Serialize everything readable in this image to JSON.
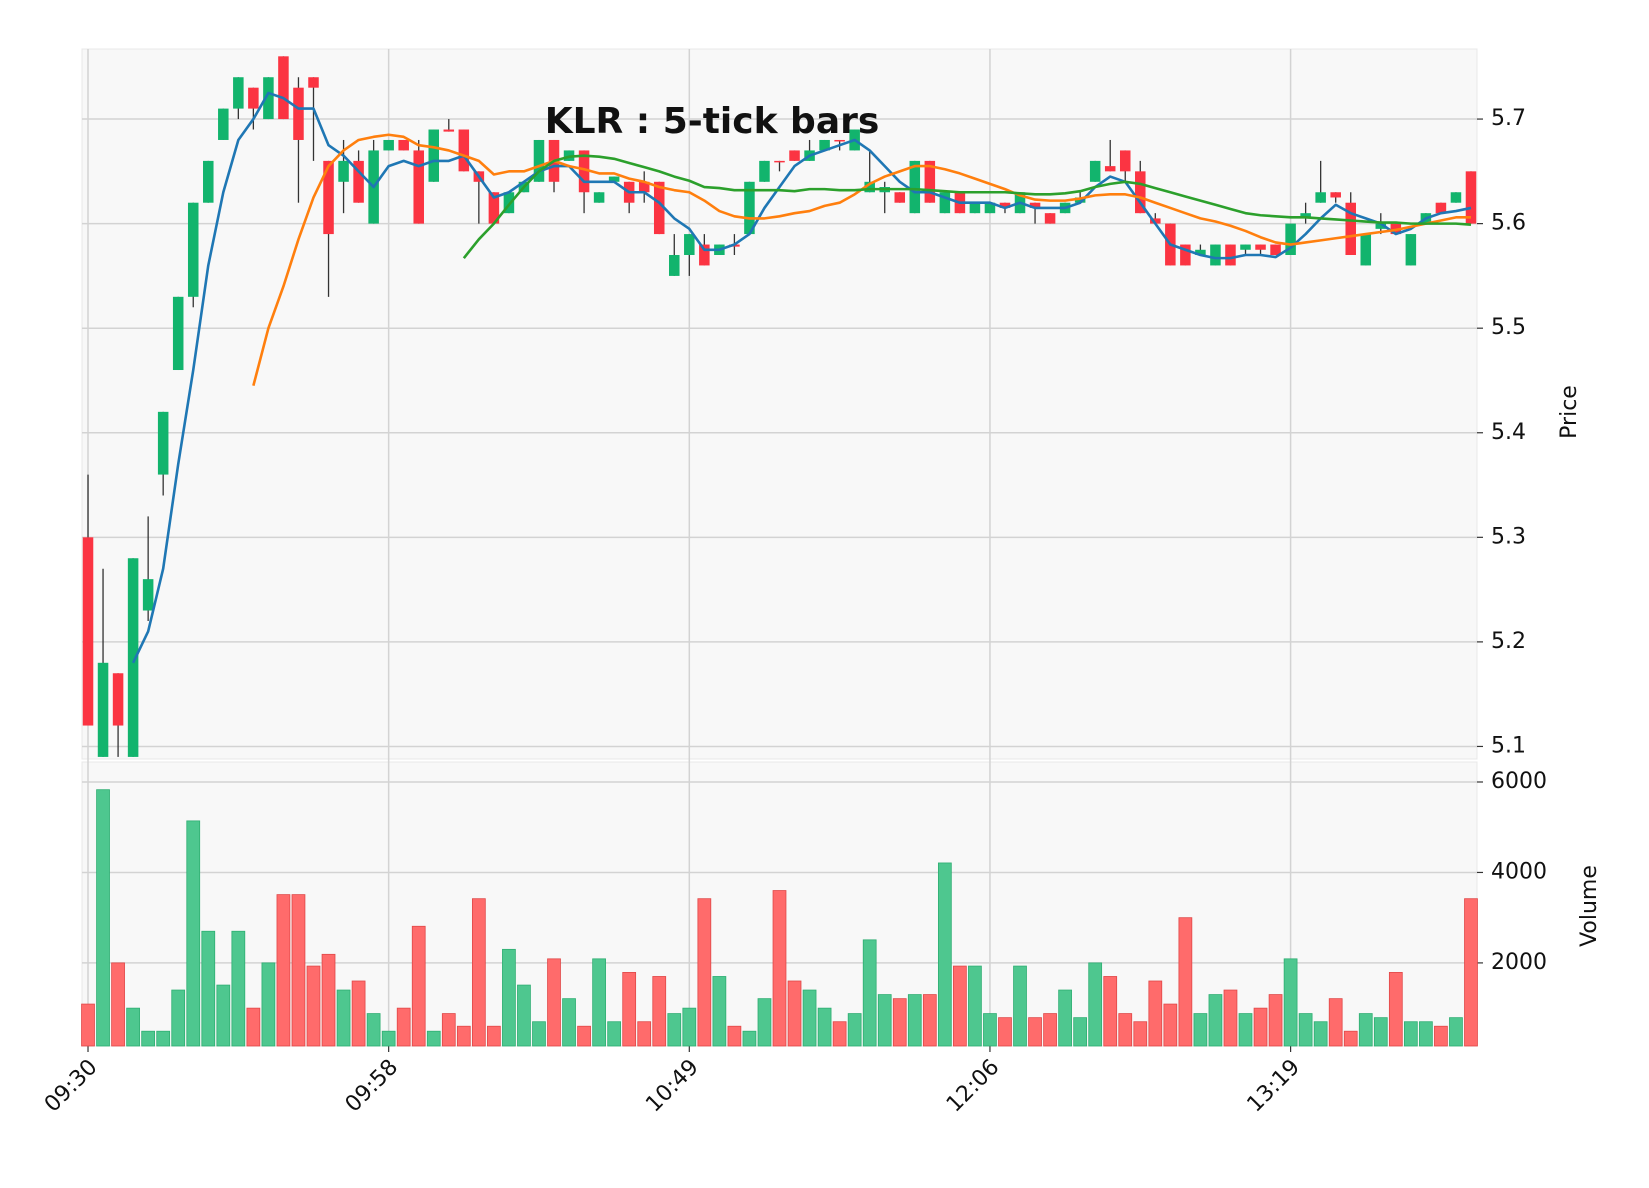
{
  "chart_data": {
    "type": "candlestick",
    "title": "KLR : 5-tick bars",
    "ylabel": "Price",
    "categories": [
      "09:30",
      null,
      null,
      null,
      null,
      null,
      null,
      null,
      null,
      null,
      null,
      null,
      null,
      null,
      null,
      null,
      null,
      null,
      null,
      null,
      "09:58",
      null,
      null,
      null,
      null,
      null,
      null,
      null,
      null,
      null,
      null,
      null,
      null,
      null,
      null,
      null,
      null,
      null,
      null,
      null,
      "10:49",
      null,
      null,
      null,
      null,
      null,
      null,
      null,
      null,
      null,
      null,
      null,
      null,
      null,
      null,
      null,
      null,
      null,
      null,
      null,
      "12:06",
      null,
      null,
      null,
      null,
      null,
      null,
      null,
      null,
      null,
      null,
      null,
      null,
      null,
      null,
      null,
      null,
      null,
      null,
      null,
      "13:19",
      null,
      null,
      null,
      null,
      null,
      null,
      null,
      null,
      null,
      null,
      null,
      null
    ],
    "open": [
      5.3,
      5.09,
      5.17,
      5.09,
      5.23,
      5.36,
      5.46,
      5.53,
      5.62,
      5.68,
      5.71,
      5.73,
      5.7,
      5.76,
      5.73,
      5.74,
      5.66,
      5.64,
      5.66,
      5.6,
      5.67,
      5.68,
      5.67,
      5.64,
      5.69,
      5.69,
      5.65,
      5.63,
      5.61,
      5.63,
      5.64,
      5.68,
      5.66,
      5.67,
      5.62,
      5.64,
      5.64,
      5.64,
      5.64,
      5.55,
      5.57,
      5.58,
      5.57,
      5.58,
      5.59,
      5.64,
      5.66,
      5.67,
      5.66,
      5.67,
      5.68,
      5.67,
      5.63,
      5.63,
      5.63,
      5.61,
      5.66,
      5.61,
      5.63,
      5.61,
      5.61,
      5.62,
      5.61,
      5.62,
      5.61,
      5.61,
      5.62,
      5.64,
      5.655,
      5.67,
      5.65,
      5.605,
      5.6,
      5.58,
      5.57,
      5.56,
      5.58,
      5.575,
      5.58,
      5.58,
      5.57,
      5.605,
      5.62,
      5.63,
      5.62,
      5.56,
      5.595,
      5.6,
      5.56,
      5.6,
      5.62,
      5.62,
      5.65
    ],
    "high": [
      5.36,
      5.27,
      5.17,
      5.28,
      5.32,
      5.42,
      5.53,
      5.62,
      5.66,
      5.71,
      5.74,
      5.73,
      5.74,
      5.76,
      5.74,
      5.74,
      5.66,
      5.68,
      5.67,
      5.68,
      5.68,
      5.68,
      5.68,
      5.69,
      5.7,
      5.69,
      5.65,
      5.63,
      5.63,
      5.64,
      5.68,
      5.68,
      5.67,
      5.67,
      5.63,
      5.645,
      5.64,
      5.65,
      5.64,
      5.59,
      5.59,
      5.59,
      5.58,
      5.59,
      5.64,
      5.66,
      5.66,
      5.67,
      5.68,
      5.68,
      5.68,
      5.69,
      5.67,
      5.64,
      5.63,
      5.66,
      5.66,
      5.63,
      5.63,
      5.62,
      5.62,
      5.62,
      5.63,
      5.62,
      5.61,
      5.62,
      5.63,
      5.66,
      5.68,
      5.67,
      5.66,
      5.61,
      5.6,
      5.58,
      5.58,
      5.58,
      5.58,
      5.58,
      5.58,
      5.58,
      5.6,
      5.62,
      5.66,
      5.63,
      5.63,
      5.59,
      5.61,
      5.6,
      5.59,
      5.61,
      5.62,
      5.63,
      5.65
    ],
    "low": [
      5.12,
      5.09,
      5.09,
      5.09,
      5.22,
      5.34,
      5.46,
      5.52,
      5.62,
      5.68,
      5.7,
      5.69,
      5.7,
      5.7,
      5.62,
      5.66,
      5.53,
      5.61,
      5.62,
      5.6,
      5.67,
      5.67,
      5.6,
      5.64,
      5.688,
      5.65,
      5.6,
      5.6,
      5.61,
      5.63,
      5.64,
      5.63,
      5.66,
      5.61,
      5.62,
      5.64,
      5.61,
      5.62,
      5.59,
      5.55,
      5.55,
      5.56,
      5.57,
      5.57,
      5.59,
      5.64,
      5.65,
      5.66,
      5.66,
      5.67,
      5.67,
      5.67,
      5.63,
      5.61,
      5.62,
      5.61,
      5.62,
      5.61,
      5.61,
      5.61,
      5.61,
      5.61,
      5.61,
      5.6,
      5.6,
      5.61,
      5.62,
      5.64,
      5.65,
      5.64,
      5.61,
      5.6,
      5.56,
      5.56,
      5.57,
      5.56,
      5.56,
      5.57,
      5.57,
      5.57,
      5.57,
      5.6,
      5.62,
      5.62,
      5.57,
      5.56,
      5.59,
      5.59,
      5.56,
      5.6,
      5.61,
      5.62,
      5.6
    ],
    "close": [
      5.12,
      5.18,
      5.12,
      5.28,
      5.26,
      5.42,
      5.53,
      5.62,
      5.66,
      5.71,
      5.74,
      5.71,
      5.74,
      5.7,
      5.68,
      5.73,
      5.59,
      5.66,
      5.62,
      5.67,
      5.68,
      5.67,
      5.6,
      5.69,
      5.688,
      5.65,
      5.64,
      5.6,
      5.63,
      5.64,
      5.68,
      5.64,
      5.67,
      5.63,
      5.63,
      5.645,
      5.62,
      5.63,
      5.59,
      5.57,
      5.59,
      5.56,
      5.58,
      5.578,
      5.64,
      5.66,
      5.659,
      5.66,
      5.67,
      5.68,
      5.679,
      5.69,
      5.64,
      5.635,
      5.62,
      5.66,
      5.62,
      5.63,
      5.61,
      5.62,
      5.62,
      5.615,
      5.63,
      5.615,
      5.6,
      5.62,
      5.625,
      5.66,
      5.65,
      5.65,
      5.61,
      5.6,
      5.56,
      5.56,
      5.575,
      5.58,
      5.56,
      5.58,
      5.575,
      5.57,
      5.6,
      5.61,
      5.63,
      5.625,
      5.57,
      5.59,
      5.6,
      5.59,
      5.59,
      5.61,
      5.61,
      5.63,
      5.6
    ],
    "up_color": "#12b46d",
    "down_color": "#fb3442",
    "xlim": [
      -0.4,
      92.4
    ],
    "ylim": [
      5.088,
      5.767
    ],
    "yticks": [
      5.1,
      5.2,
      5.3,
      5.4,
      5.5,
      5.6,
      5.7
    ],
    "grid": true,
    "mav": [
      {
        "color": "#1f77b4",
        "values": [
          null,
          null,
          null,
          5.18,
          5.21,
          5.27,
          5.37,
          5.46,
          5.56,
          5.63,
          5.68,
          5.7,
          5.725,
          5.72,
          5.71,
          5.71,
          5.675,
          5.665,
          5.65,
          5.635,
          5.655,
          5.66,
          5.655,
          5.66,
          5.66,
          5.665,
          5.645,
          5.625,
          5.63,
          5.64,
          5.65,
          5.655,
          5.655,
          5.64,
          5.64,
          5.64,
          5.63,
          5.63,
          5.62,
          5.605,
          5.595,
          5.575,
          5.575,
          5.58,
          5.59,
          5.615,
          5.635,
          5.655,
          5.665,
          5.67,
          5.675,
          5.68,
          5.67,
          5.655,
          5.64,
          5.63,
          5.63,
          5.625,
          5.62,
          5.62,
          5.62,
          5.615,
          5.62,
          5.615,
          5.615,
          5.615,
          5.62,
          5.635,
          5.645,
          5.64,
          5.62,
          5.6,
          5.58,
          5.575,
          5.57,
          5.567,
          5.567,
          5.57,
          5.57,
          5.568,
          5.577,
          5.59,
          5.605,
          5.618,
          5.61,
          5.605,
          5.6,
          5.59,
          5.595,
          5.605,
          5.61,
          5.612,
          5.615
        ]
      },
      {
        "color": "#ff7f0e",
        "values": [
          null,
          null,
          null,
          null,
          null,
          null,
          null,
          null,
          null,
          null,
          null,
          5.445,
          5.5,
          5.54,
          5.585,
          5.625,
          5.655,
          5.67,
          5.68,
          5.683,
          5.685,
          5.683,
          5.675,
          5.673,
          5.67,
          5.665,
          5.66,
          5.647,
          5.65,
          5.65,
          5.655,
          5.66,
          5.655,
          5.652,
          5.648,
          5.648,
          5.643,
          5.64,
          5.635,
          5.632,
          5.63,
          5.622,
          5.612,
          5.607,
          5.605,
          5.605,
          5.607,
          5.61,
          5.612,
          5.617,
          5.62,
          5.628,
          5.638,
          5.645,
          5.65,
          5.655,
          5.655,
          5.652,
          5.648,
          5.643,
          5.638,
          5.633,
          5.627,
          5.623,
          5.622,
          5.622,
          5.624,
          5.627,
          5.628,
          5.628,
          5.625,
          5.62,
          5.615,
          5.61,
          5.605,
          5.602,
          5.598,
          5.593,
          5.587,
          5.582,
          5.58,
          5.582,
          5.584,
          5.586,
          5.588,
          5.59,
          5.592,
          5.594,
          5.597,
          5.6,
          5.603,
          5.606,
          5.606
        ]
      },
      {
        "color": "#2ca02c",
        "values": [
          null,
          null,
          null,
          null,
          null,
          null,
          null,
          null,
          null,
          null,
          null,
          null,
          null,
          null,
          null,
          null,
          null,
          null,
          null,
          null,
          null,
          null,
          null,
          null,
          null,
          5.567,
          5.585,
          5.6,
          5.618,
          5.635,
          5.65,
          5.66,
          5.664,
          5.665,
          5.664,
          5.662,
          5.658,
          5.654,
          5.65,
          5.645,
          5.641,
          5.635,
          5.634,
          5.632,
          5.632,
          5.632,
          5.632,
          5.631,
          5.633,
          5.633,
          5.632,
          5.632,
          5.633,
          5.633,
          5.633,
          5.633,
          5.632,
          5.631,
          5.63,
          5.63,
          5.63,
          5.63,
          5.629,
          5.628,
          5.628,
          5.629,
          5.631,
          5.635,
          5.638,
          5.64,
          5.638,
          5.634,
          5.63,
          5.626,
          5.622,
          5.618,
          5.614,
          5.61,
          5.608,
          5.607,
          5.606,
          5.606,
          5.605,
          5.604,
          5.603,
          5.602,
          5.601,
          5.601,
          5.6,
          5.6,
          5.6,
          5.6,
          5.599
        ]
      }
    ],
    "volume": {
      "label": "Volume",
      "up_color": "#4ec78f",
      "down_color": "#ff6b6b",
      "ylim": [
        163,
        6442
      ],
      "yticks": [
        2000,
        4000,
        6000
      ],
      "values": [
        1090,
        5830,
        2000,
        1000,
        490,
        490,
        1400,
        5140,
        2700,
        1510,
        2700,
        1000,
        2000,
        3510,
        3510,
        1930,
        2190,
        1400,
        1600,
        880,
        490,
        1000,
        2810,
        490,
        880,
        600,
        3420,
        600,
        2300,
        1510,
        700,
        2090,
        1210,
        600,
        2090,
        700,
        1790,
        700,
        1700,
        880,
        1000,
        3420,
        1700,
        600,
        490,
        1210,
        3600,
        1600,
        1400,
        1000,
        700,
        880,
        2510,
        1300,
        1210,
        1300,
        1300,
        4210,
        1930,
        1930,
        880,
        790,
        1930,
        790,
        880,
        1400,
        790,
        2000,
        1700,
        880,
        700,
        1600,
        1090,
        3000,
        880,
        1300,
        1400,
        880,
        1000,
        1300,
        2090,
        880,
        700,
        1210,
        490,
        880,
        790,
        1790,
        700,
        700,
        600,
        790,
        3420
      ]
    }
  }
}
